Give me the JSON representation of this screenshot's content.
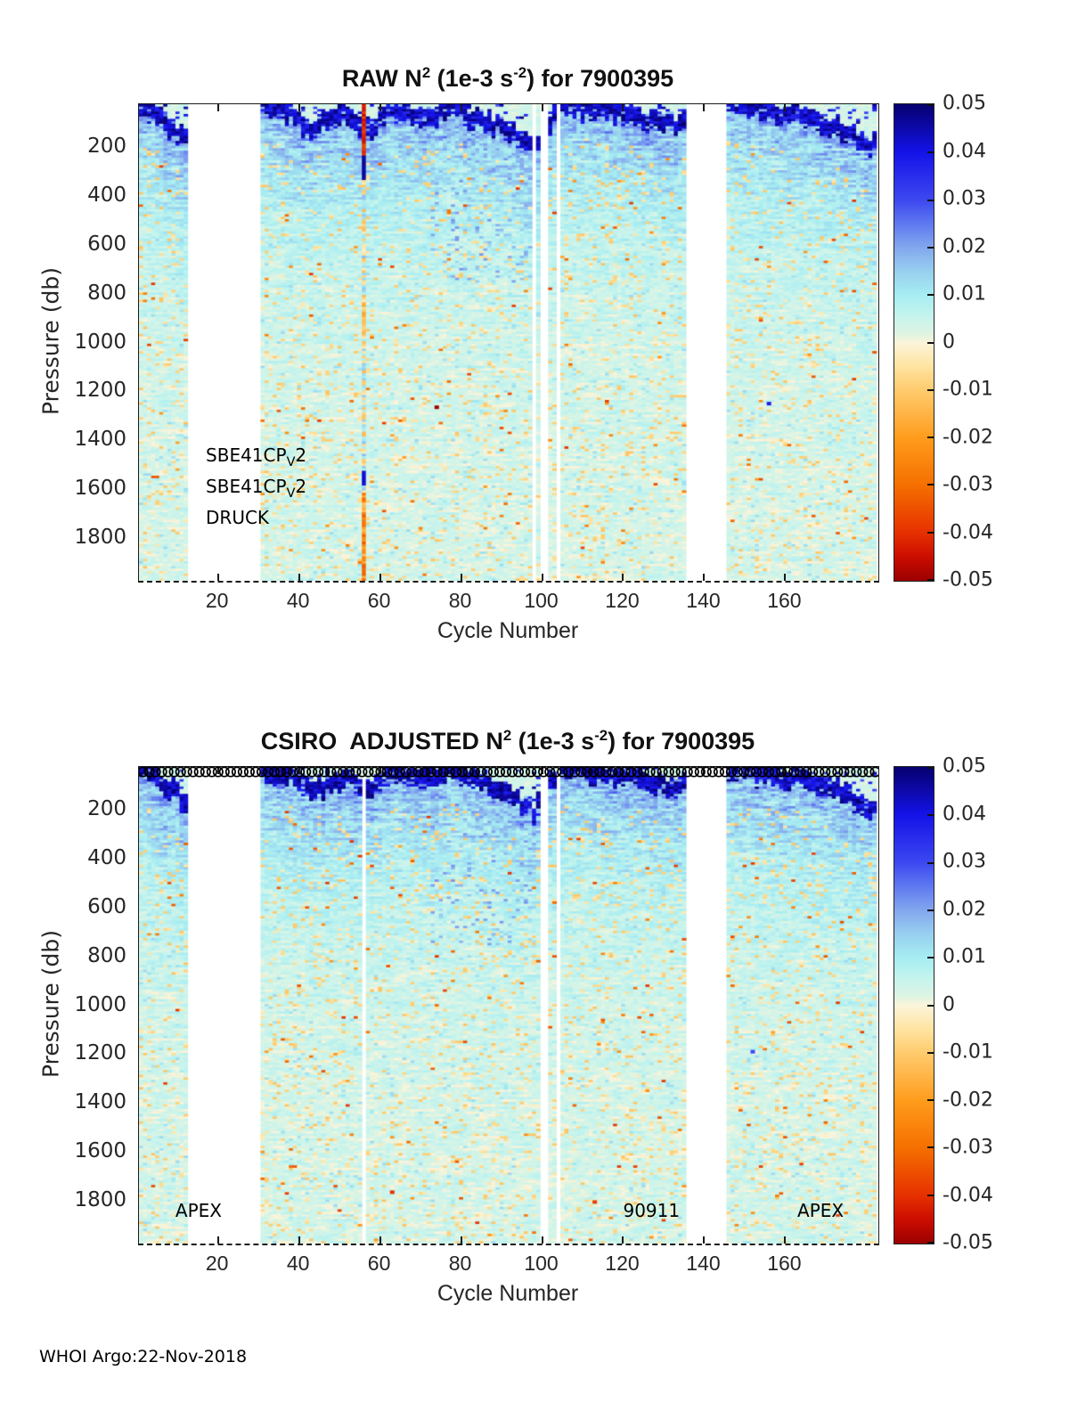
{
  "page": {
    "footer": "WHOI Argo:22-Nov-2018",
    "background": "#ffffff"
  },
  "chart_data": [
    {
      "type": "heatmap",
      "id": "raw",
      "title": "RAW N^2 (1e-3 s^-2) for 7900395",
      "title_parts": {
        "t1": "RAW N",
        "sup1": "2",
        "t2": " (1e-3 s",
        "sup2": "-2",
        "t3": ") for 7900395"
      },
      "xlabel": "Cycle Number",
      "ylabel": "Pressure (db)",
      "xlim": [
        0.5,
        183
      ],
      "ylim_db": [
        25,
        1975
      ],
      "x_ticks": [
        20,
        40,
        60,
        80,
        100,
        120,
        140,
        160
      ],
      "y_ticks": [
        200,
        400,
        600,
        800,
        1000,
        1200,
        1400,
        1600,
        1800
      ],
      "grid": false,
      "legend_position": "right-colorbar",
      "colorbar": {
        "min": -0.05,
        "max": 0.05,
        "tick_labels": [
          "0.05",
          "0.04",
          "0.03",
          "0.02",
          "0.01",
          "0",
          "-0.01",
          "-0.02",
          "-0.03",
          "-0.04",
          "-0.05"
        ]
      },
      "colormap_stops": [
        [
          0.05,
          "#06006E"
        ],
        [
          0.04,
          "#1412E8"
        ],
        [
          0.03,
          "#3C47F0"
        ],
        [
          0.025,
          "#5E78F0"
        ],
        [
          0.02,
          "#82A6EE"
        ],
        [
          0.015,
          "#97CFEF"
        ],
        [
          0.01,
          "#A6EDF2"
        ],
        [
          0.005,
          "#C9F4EC"
        ],
        [
          0.002,
          "#DCF4E3"
        ],
        [
          0.0,
          "#FBF4DA"
        ],
        [
          -0.005,
          "#FFE4A1"
        ],
        [
          -0.01,
          "#FFCB6E"
        ],
        [
          -0.02,
          "#FF9C1C"
        ],
        [
          -0.03,
          "#F56F00"
        ],
        [
          -0.04,
          "#E63000"
        ],
        [
          -0.045,
          "#CB0D00"
        ],
        [
          -0.05,
          "#9B0000"
        ]
      ],
      "missing_cycles": [
        [
          12.5,
          30.6
        ],
        [
          97.6,
          98.5
        ],
        [
          99.9,
          101.4
        ],
        [
          103.1,
          104.9
        ],
        [
          135.6,
          145.2
        ]
      ],
      "band_depth_db": [
        [
          1,
          25
        ],
        [
          6,
          80
        ],
        [
          9,
          120
        ],
        [
          12,
          170
        ],
        [
          31,
          35
        ],
        [
          34,
          60
        ],
        [
          38,
          45
        ],
        [
          43,
          130
        ],
        [
          48,
          80
        ],
        [
          52,
          70
        ],
        [
          56,
          110
        ],
        [
          58,
          120
        ],
        [
          61,
          60
        ],
        [
          65,
          45
        ],
        [
          70,
          70
        ],
        [
          74,
          60
        ],
        [
          78,
          45
        ],
        [
          82,
          70
        ],
        [
          86,
          90
        ],
        [
          90,
          120
        ],
        [
          94,
          150
        ],
        [
          98,
          220
        ],
        [
          103,
          60
        ],
        [
          105,
          40
        ],
        [
          109,
          30
        ],
        [
          113,
          50
        ],
        [
          117,
          45
        ],
        [
          121,
          70
        ],
        [
          125,
          80
        ],
        [
          129,
          95
        ],
        [
          133,
          110
        ],
        [
          145,
          35
        ],
        [
          149,
          30
        ],
        [
          154,
          45
        ],
        [
          158,
          55
        ],
        [
          163,
          60
        ],
        [
          167,
          80
        ],
        [
          171,
          110
        ],
        [
          175,
          130
        ],
        [
          178,
          170
        ],
        [
          181,
          200
        ],
        [
          183,
          170
        ]
      ],
      "deep_blue_region": {
        "cycles": [
          72,
          98
        ],
        "max_db": 760
      },
      "anomaly_cycle": 56,
      "spots": [
        {
          "cycle": 74,
          "pressure": 1265,
          "value": -0.05
        },
        {
          "cycle": 156,
          "pressure": 1250,
          "value": 0.038
        }
      ],
      "annotations": [
        {
          "text": "SBE41CP",
          "sub": "V",
          "suffix": "2",
          "cycle": 17,
          "pressure": 1470
        },
        {
          "text": "SBE41CP",
          "sub": "V",
          "suffix": "2",
          "cycle": 17,
          "pressure": 1595
        },
        {
          "text": "DRUCK",
          "cycle": 17,
          "pressure": 1715
        }
      ],
      "noise_seed": 20
    },
    {
      "type": "heatmap",
      "id": "csiro-adjusted",
      "title": "CSIRO  ADJUSTED N^2 (1e-3 s^-2) for 7900395",
      "title_parts": {
        "t1": "CSIRO  ADJUSTED N",
        "sup1": "2",
        "t2": " (1e-3 s",
        "sup2": "-2",
        "t3": ") for 7900395"
      },
      "xlabel": "Cycle Number",
      "ylabel": "Pressure (db)",
      "xlim": [
        0.5,
        183
      ],
      "ylim_db": [
        25,
        1975
      ],
      "x_ticks": [
        20,
        40,
        60,
        80,
        100,
        120,
        140,
        160
      ],
      "y_ticks": [
        200,
        400,
        600,
        800,
        1000,
        1200,
        1400,
        1600,
        1800
      ],
      "grid": false,
      "legend_position": "right-colorbar",
      "colorbar": {
        "min": -0.05,
        "max": 0.05,
        "tick_labels": [
          "0.05",
          "0.04",
          "0.03",
          "0.02",
          "0.01",
          "0",
          "-0.01",
          "-0.02",
          "-0.03",
          "-0.04",
          "-0.05"
        ]
      },
      "colormap_stops": [
        [
          0.05,
          "#06006E"
        ],
        [
          0.04,
          "#1412E8"
        ],
        [
          0.03,
          "#3C47F0"
        ],
        [
          0.025,
          "#5E78F0"
        ],
        [
          0.02,
          "#82A6EE"
        ],
        [
          0.015,
          "#97CFEF"
        ],
        [
          0.01,
          "#A6EDF2"
        ],
        [
          0.005,
          "#C9F4EC"
        ],
        [
          0.002,
          "#DCF4E3"
        ],
        [
          0.0,
          "#FBF4DA"
        ],
        [
          -0.005,
          "#FFE4A1"
        ],
        [
          -0.01,
          "#FFCB6E"
        ],
        [
          -0.02,
          "#FF9C1C"
        ],
        [
          -0.03,
          "#F56F00"
        ],
        [
          -0.04,
          "#E63000"
        ],
        [
          -0.045,
          "#CB0D00"
        ],
        [
          -0.05,
          "#9B0000"
        ]
      ],
      "missing_cycles": [
        [
          12.5,
          30.6
        ],
        [
          55.5,
          56.9
        ],
        [
          99.9,
          101.4
        ],
        [
          103.1,
          104.9
        ],
        [
          135.6,
          145.2
        ]
      ],
      "band_depth_db": [
        [
          1,
          25
        ],
        [
          6,
          80
        ],
        [
          9,
          120
        ],
        [
          12,
          170
        ],
        [
          31,
          35
        ],
        [
          34,
          60
        ],
        [
          38,
          45
        ],
        [
          43,
          130
        ],
        [
          48,
          80
        ],
        [
          52,
          70
        ],
        [
          56,
          110
        ],
        [
          58,
          120
        ],
        [
          61,
          60
        ],
        [
          65,
          45
        ],
        [
          70,
          70
        ],
        [
          74,
          60
        ],
        [
          78,
          45
        ],
        [
          82,
          70
        ],
        [
          86,
          90
        ],
        [
          90,
          120
        ],
        [
          94,
          150
        ],
        [
          98,
          220
        ],
        [
          103,
          60
        ],
        [
          105,
          40
        ],
        [
          109,
          30
        ],
        [
          113,
          50
        ],
        [
          117,
          45
        ],
        [
          121,
          70
        ],
        [
          125,
          80
        ],
        [
          129,
          95
        ],
        [
          133,
          110
        ],
        [
          145,
          35
        ],
        [
          149,
          30
        ],
        [
          154,
          45
        ],
        [
          158,
          55
        ],
        [
          163,
          60
        ],
        [
          167,
          80
        ],
        [
          171,
          110
        ],
        [
          175,
          130
        ],
        [
          178,
          170
        ],
        [
          181,
          200
        ],
        [
          183,
          170
        ]
      ],
      "deep_blue_region": {
        "cycles": [
          72,
          98
        ],
        "max_db": 760
      },
      "anomaly_cycle": null,
      "spots": [
        {
          "cycle": 63,
          "pressure": 1765,
          "value": -0.04
        },
        {
          "cycle": 113,
          "pressure": 1805,
          "value": -0.038
        },
        {
          "cycle": 152,
          "pressure": 1190,
          "value": 0.03
        }
      ],
      "annotations": [
        {
          "text": "APEX",
          "cycle": 9.5,
          "pressure": 1840
        },
        {
          "text": "90911",
          "cycle": 120,
          "pressure": 1840
        },
        {
          "text": "APEX",
          "cycle": 163,
          "pressure": 1840
        }
      ],
      "marker_row": {
        "symbol": "open-circle",
        "count": 118
      },
      "noise_seed": 77
    }
  ]
}
